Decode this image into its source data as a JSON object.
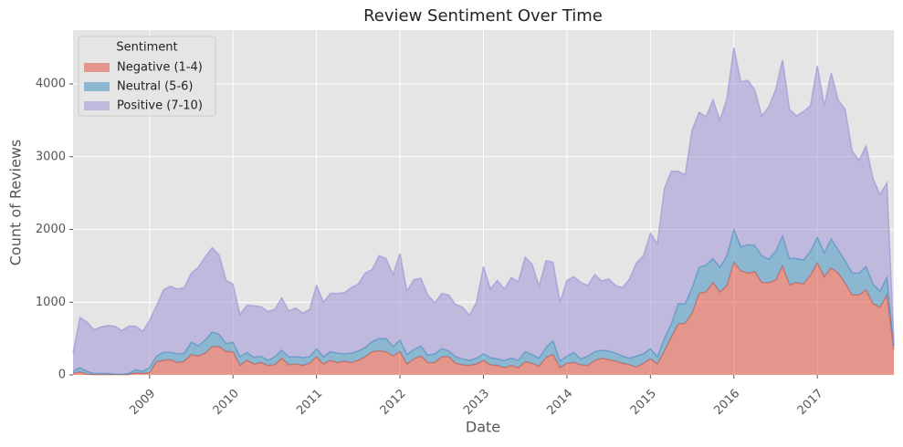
{
  "chart_data": {
    "type": "area",
    "stacked": true,
    "title": "Review Sentiment Over Time",
    "xlabel": "Date",
    "ylabel": "Count of Reviews",
    "legend_title": "Sentiment",
    "legend": "upper left",
    "grid": true,
    "x": [
      "2008-02",
      "2008-03",
      "2008-04",
      "2008-05",
      "2008-06",
      "2008-07",
      "2008-08",
      "2008-09",
      "2008-10",
      "2008-11",
      "2008-12",
      "2009-01",
      "2009-02",
      "2009-03",
      "2009-04",
      "2009-05",
      "2009-06",
      "2009-07",
      "2009-08",
      "2009-09",
      "2009-10",
      "2009-11",
      "2009-12",
      "2010-01",
      "2010-02",
      "2010-03",
      "2010-04",
      "2010-05",
      "2010-06",
      "2010-07",
      "2010-08",
      "2010-09",
      "2010-10",
      "2010-11",
      "2010-12",
      "2011-01",
      "2011-02",
      "2011-03",
      "2011-04",
      "2011-05",
      "2011-06",
      "2011-07",
      "2011-08",
      "2011-09",
      "2011-10",
      "2011-11",
      "2011-12",
      "2012-01",
      "2012-02",
      "2012-03",
      "2012-04",
      "2012-05",
      "2012-06",
      "2012-07",
      "2012-08",
      "2012-09",
      "2012-10",
      "2012-11",
      "2012-12",
      "2013-01",
      "2013-02",
      "2013-03",
      "2013-04",
      "2013-05",
      "2013-06",
      "2013-07",
      "2013-08",
      "2013-09",
      "2013-10",
      "2013-11",
      "2013-12",
      "2014-01",
      "2014-02",
      "2014-03",
      "2014-04",
      "2014-05",
      "2014-06",
      "2014-07",
      "2014-08",
      "2014-09",
      "2014-10",
      "2014-11",
      "2014-12",
      "2015-01",
      "2015-02",
      "2015-03",
      "2015-04",
      "2015-05",
      "2015-06",
      "2015-07",
      "2015-08",
      "2015-09",
      "2015-10",
      "2015-11",
      "2015-12",
      "2016-01",
      "2016-02",
      "2016-03",
      "2016-04",
      "2016-05",
      "2016-06",
      "2016-07",
      "2016-08",
      "2016-09",
      "2016-10",
      "2016-11",
      "2016-12",
      "2017-01",
      "2017-02",
      "2017-03",
      "2017-04",
      "2017-05",
      "2017-06",
      "2017-07",
      "2017-08",
      "2017-09",
      "2017-10",
      "2017-11",
      "2017-12"
    ],
    "series": [
      {
        "name": "Negative (1-4)",
        "color": "#E24A33",
        "values": [
          20,
          40,
          10,
          5,
          5,
          5,
          5,
          5,
          5,
          30,
          20,
          30,
          180,
          200,
          210,
          170,
          190,
          280,
          260,
          300,
          390,
          390,
          320,
          320,
          130,
          200,
          150,
          170,
          130,
          140,
          230,
          140,
          150,
          130,
          160,
          250,
          150,
          200,
          170,
          190,
          170,
          200,
          250,
          320,
          330,
          320,
          260,
          320,
          150,
          220,
          260,
          170,
          170,
          250,
          250,
          160,
          140,
          130,
          150,
          200,
          140,
          130,
          100,
          130,
          100,
          180,
          160,
          120,
          240,
          280,
          100,
          160,
          170,
          140,
          130,
          200,
          230,
          210,
          190,
          160,
          140,
          110,
          160,
          220,
          150,
          330,
          520,
          700,
          710,
          850,
          1120,
          1140,
          1270,
          1140,
          1230,
          1550,
          1430,
          1400,
          1420,
          1270,
          1270,
          1300,
          1500,
          1240,
          1270,
          1250,
          1370,
          1540,
          1350,
          1470,
          1400,
          1260,
          1100,
          1100,
          1170,
          980,
          930,
          1100,
          350
        ]
      },
      {
        "name": "Neutral (5-6)",
        "color": "#348ABD",
        "values": [
          30,
          60,
          40,
          15,
          15,
          15,
          5,
          5,
          15,
          40,
          30,
          70,
          80,
          110,
          100,
          120,
          110,
          170,
          140,
          180,
          200,
          170,
          110,
          130,
          120,
          110,
          90,
          90,
          70,
          110,
          110,
          110,
          100,
          110,
          90,
          110,
          100,
          120,
          130,
          100,
          130,
          130,
          130,
          140,
          170,
          180,
          130,
          160,
          130,
          130,
          140,
          100,
          120,
          110,
          80,
          90,
          80,
          70,
          80,
          90,
          100,
          90,
          100,
          100,
          100,
          140,
          120,
          110,
          140,
          190,
          90,
          100,
          140,
          80,
          130,
          120,
          110,
          120,
          110,
          100,
          90,
          150,
          130,
          140,
          100,
          170,
          180,
          280,
          270,
          350,
          360,
          370,
          330,
          340,
          410,
          450,
          330,
          390,
          360,
          370,
          320,
          400,
          410,
          360,
          330,
          330,
          330,
          350,
          330,
          400,
          320,
          310,
          300,
          300,
          320,
          270,
          220,
          240,
          50
        ]
      },
      {
        "name": "Positive (7-10)",
        "color": "#988ED5",
        "values": [
          250,
          690,
          680,
          600,
          640,
          660,
          660,
          600,
          650,
          600,
          550,
          650,
          690,
          860,
          910,
          890,
          900,
          950,
          1080,
          1140,
          1160,
          1090,
          870,
          800,
          580,
          650,
          710,
          680,
          670,
          650,
          720,
          630,
          670,
          610,
          650,
          870,
          750,
          800,
          820,
          840,
          900,
          920,
          1020,
          990,
          1140,
          1100,
          990,
          1190,
          870,
          960,
          930,
          830,
          700,
          760,
          770,
          720,
          710,
          620,
          770,
          1200,
          940,
          1080,
          980,
          1110,
          1080,
          1300,
          1240,
          990,
          1190,
          1080,
          810,
          1040,
          1040,
          1050,
          970,
          1060,
          950,
          990,
          930,
          940,
          1090,
          1280,
          1350,
          1590,
          1550,
          2060,
          2100,
          1820,
          1770,
          2170,
          2130,
          2040,
          2180,
          2020,
          2160,
          2500,
          2270,
          2260,
          2140,
          1920,
          2090,
          2220,
          2420,
          2050,
          1960,
          2040,
          2000,
          2360,
          2020,
          2280,
          2060,
          2080,
          1680,
          1550,
          1660,
          1450,
          1330,
          1300,
          50
        ]
      }
    ],
    "xlim": [
      "2008-02",
      "2017-12"
    ],
    "xticks": [
      2009,
      2010,
      2011,
      2012,
      2013,
      2014,
      2015,
      2016,
      2017
    ],
    "ylim": [
      0,
      4740
    ],
    "yticks": [
      0,
      1000,
      2000,
      3000,
      4000
    ]
  }
}
